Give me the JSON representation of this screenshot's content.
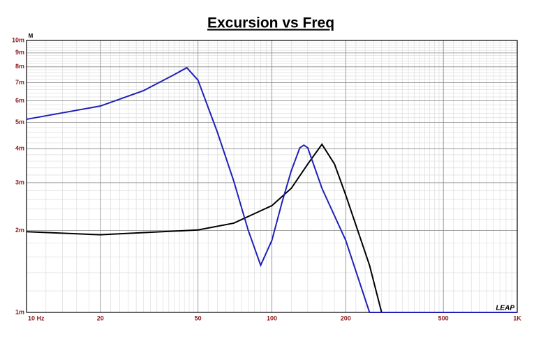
{
  "chart_data": {
    "type": "line",
    "title": "Excursion vs Freq",
    "y_unit": "M",
    "logo": "LEAP",
    "xlog": true,
    "ylog": true,
    "grid": true,
    "minor_grid": true,
    "xlim": [
      10,
      1000
    ],
    "ylim": [
      0.001,
      0.01
    ],
    "xticks": [
      {
        "value": 10,
        "label": "10  Hz"
      },
      20,
      50,
      100,
      200,
      500,
      {
        "value": 1000,
        "label": "1K"
      }
    ],
    "yticks": [
      {
        "value": 0.01,
        "label": "10m"
      },
      {
        "value": 0.009,
        "label": "9m"
      },
      {
        "value": 0.008,
        "label": "8m"
      },
      {
        "value": 0.007,
        "label": "7m"
      },
      {
        "value": 0.006,
        "label": "6m"
      },
      {
        "value": 0.005,
        "label": "5m"
      },
      {
        "value": 0.004,
        "label": "4m"
      },
      {
        "value": 0.003,
        "label": "3m"
      },
      {
        "value": 0.002,
        "label": "2m"
      },
      {
        "value": 0.001,
        "label": "1m"
      }
    ],
    "series": [
      {
        "color": "#2020b8",
        "x": [
          10,
          20,
          30,
          40,
          45,
          50,
          60,
          70,
          80,
          90,
          100,
          110,
          120,
          130,
          135,
          140,
          160,
          200,
          250,
          1000
        ],
        "values": [
          0.00513,
          0.00574,
          0.00654,
          0.00749,
          0.00794,
          0.00714,
          0.00459,
          0.00303,
          0.00201,
          0.00149,
          0.00184,
          0.00254,
          0.00332,
          0.00403,
          0.00412,
          0.00403,
          0.00286,
          0.00184,
          0.001,
          0.001
        ]
      },
      {
        "color": "#000000",
        "x": [
          10,
          20,
          50,
          70,
          100,
          120,
          140,
          160,
          180,
          200,
          250,
          280,
          1000
        ],
        "values": [
          0.00198,
          0.00193,
          0.00201,
          0.00213,
          0.00247,
          0.00286,
          0.00351,
          0.00415,
          0.00351,
          0.0027,
          0.00149,
          0.001,
          0.001
        ]
      }
    ]
  }
}
